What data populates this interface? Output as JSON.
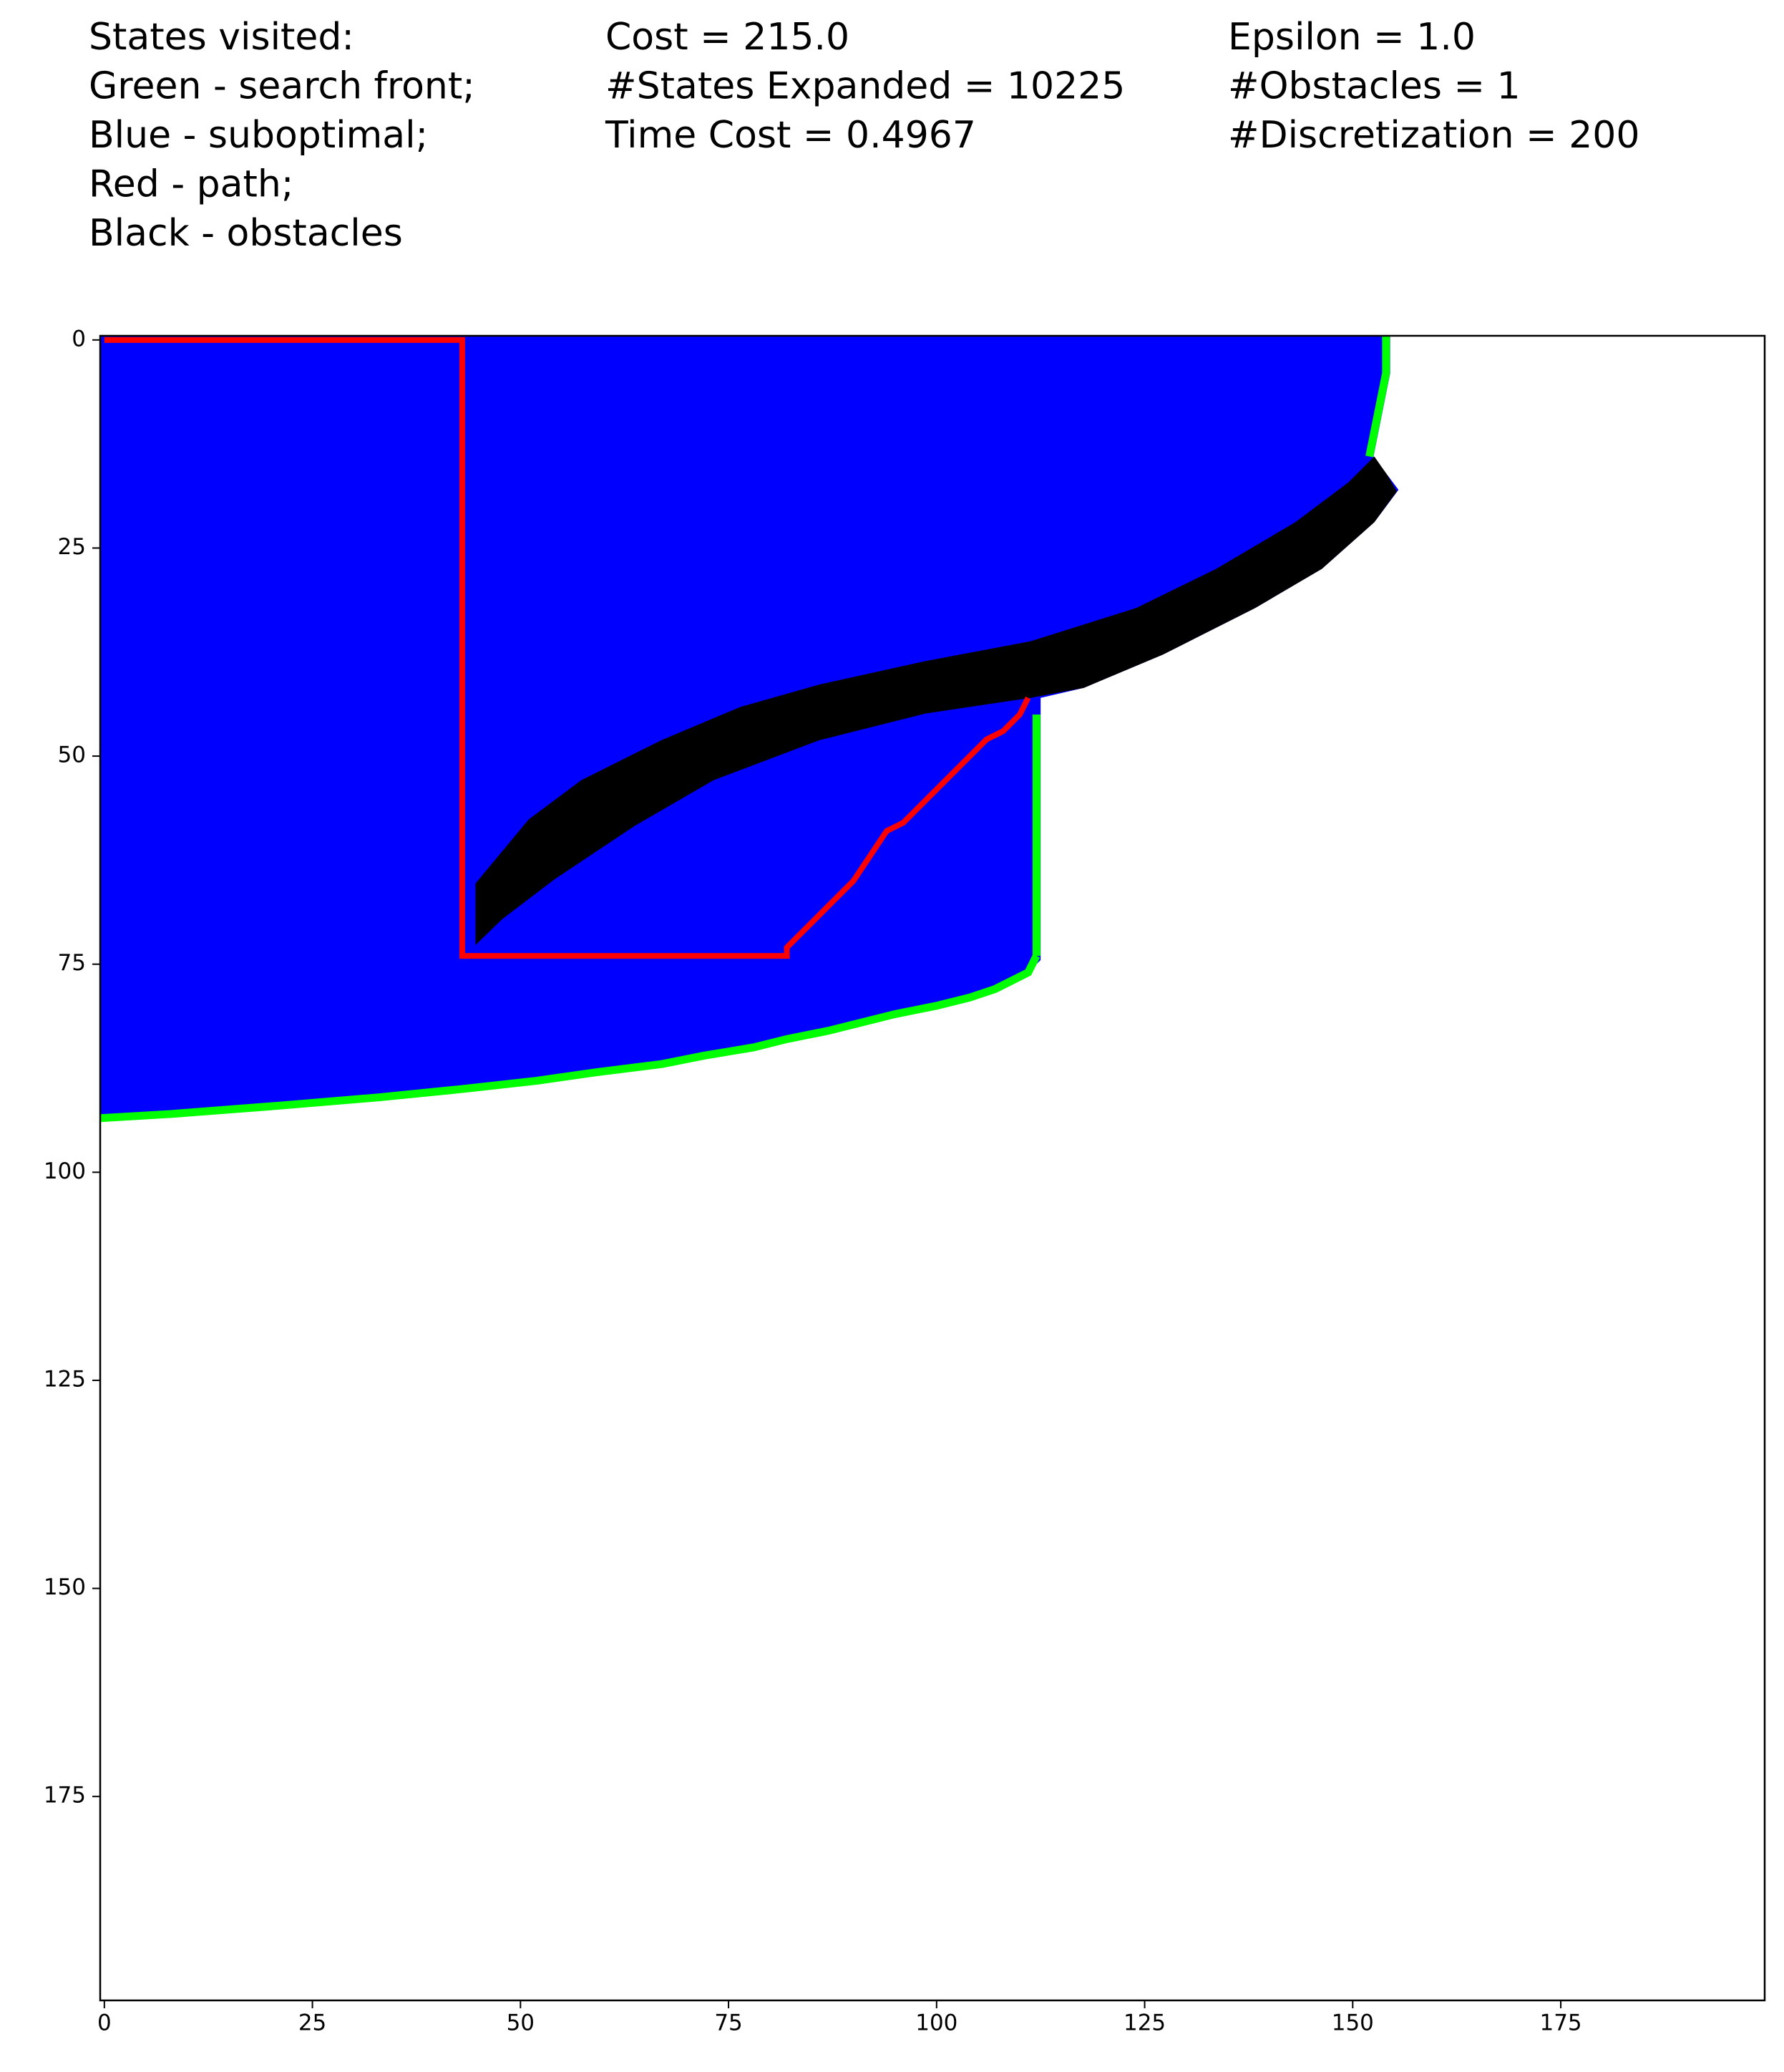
{
  "chart_data": {
    "type": "grid-image",
    "text_columns": [
      [
        "States visited:",
        "Green - search front;",
        "Blue - suboptimal;",
        "Red - path;",
        "Black - obstacles"
      ],
      [
        "Cost = 215.0",
        "#States Expanded = 10225",
        "Time Cost = 0.4967"
      ],
      [
        "Epsilon = 1.0",
        "#Obstacles = 1",
        "#Discretization = 200"
      ]
    ],
    "xlim": [
      -0.5,
      199.5
    ],
    "ylim": [
      199.5,
      -0.5
    ],
    "xticks": [
      0,
      25,
      50,
      75,
      100,
      125,
      150,
      175
    ],
    "yticks": [
      0,
      25,
      50,
      75,
      100,
      125,
      150,
      175
    ],
    "shapes": [
      {
        "type": "polygon",
        "color": "#0000ff",
        "x": [
          -0.5,
          154.5,
          154.5,
          153.5,
          152.5,
          155.5,
          152.6,
          146.3,
          138.3,
          127.2,
          117.7,
          112.5,
          112.5,
          111,
          109,
          107,
          104,
          100,
          95,
          91,
          87,
          82,
          78,
          72,
          67,
          59,
          52,
          43,
          33,
          21,
          8,
          -0.5
        ],
        "y": [
          -0.5,
          -0.5,
          4,
          9,
          14,
          18,
          21.9,
          27.5,
          32.2,
          37.8,
          41.8,
          43,
          74.5,
          76,
          77,
          78,
          79,
          80,
          81,
          82,
          83,
          84,
          85,
          86,
          87,
          88,
          89,
          90,
          91,
          92,
          93,
          93.5
        ]
      },
      {
        "type": "polyline",
        "color": "#00ff00",
        "x": [
          154,
          154,
          153,
          152
        ],
        "y": [
          -0.5,
          4,
          9,
          14
        ]
      },
      {
        "type": "polyline",
        "color": "#00ff00",
        "x": [
          112,
          112
        ],
        "y": [
          45,
          74
        ]
      },
      {
        "type": "polyline",
        "color": "#00ff00",
        "x": [
          112,
          111,
          109,
          107,
          104,
          100,
          95,
          91,
          87,
          82,
          78,
          72,
          67,
          59,
          52,
          43,
          33,
          21,
          8,
          -0.5
        ],
        "y": [
          74,
          76,
          77,
          78,
          79,
          80,
          81,
          82,
          83,
          84,
          85,
          86,
          87,
          88,
          89,
          90,
          91,
          92,
          93,
          93.5
        ]
      },
      {
        "type": "polygon",
        "color": "#000000",
        "x": [
          44.6,
          51,
          57.3,
          66.9,
          76.4,
          85.9,
          98.6,
          111.3,
          124,
          133.6,
          143.1,
          149.5,
          152.6,
          154.2,
          155.3,
          152.6,
          146.3,
          138.3,
          127.2,
          117.7,
          111.3,
          98.6,
          85.9,
          73.2,
          63.7,
          54.1,
          47.8,
          44.6
        ],
        "y": [
          65.3,
          57.6,
          52.9,
          48.1,
          44.1,
          41.4,
          38.6,
          36.2,
          32.2,
          27.5,
          21.9,
          17.1,
          14,
          16.3,
          18.2,
          21.9,
          27.5,
          32.2,
          37.8,
          41.8,
          43,
          44.9,
          48.1,
          52.9,
          58.4,
          64.8,
          69.6,
          72.7
        ]
      },
      {
        "type": "polyline",
        "color": "#ff0000",
        "x": [
          0,
          43,
          43,
          82,
          82,
          84,
          86,
          88,
          90,
          92,
          94,
          96,
          98,
          100,
          102,
          104,
          106,
          108,
          110,
          111
        ],
        "y": [
          0,
          0,
          74,
          74,
          73,
          71,
          69,
          67,
          65,
          62,
          59,
          58,
          56,
          54,
          52,
          50,
          48,
          47,
          45,
          43
        ]
      }
    ]
  }
}
